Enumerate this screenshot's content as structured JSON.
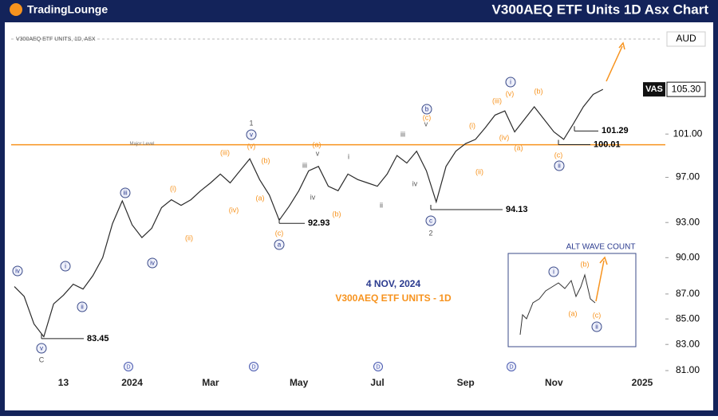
{
  "header": {
    "logo": "TradingLounge",
    "title": "V300AEQ ETF Units 1D Asx Chart"
  },
  "chart_data": {
    "type": "line",
    "instrument": "V300AEQ ETF UNITS, 1D, ASX",
    "currency": "AUD",
    "color": "#2b2b2b",
    "log": true,
    "grid": false,
    "categories": [
      null,
      null,
      null,
      null,
      null,
      "13",
      null,
      null,
      null,
      null,
      null,
      null,
      "2024",
      null,
      null,
      null,
      null,
      null,
      null,
      null,
      "Mar",
      null,
      null,
      null,
      null,
      null,
      null,
      null,
      null,
      "May",
      null,
      null,
      null,
      null,
      null,
      null,
      null,
      "Jul",
      null,
      null,
      null,
      null,
      null,
      null,
      null,
      null,
      "Sep",
      null,
      null,
      null,
      null,
      null,
      null,
      null,
      null,
      "Nov",
      null,
      null,
      null,
      null,
      null,
      null,
      null,
      null,
      "2025"
    ],
    "values": [
      87.6,
      86.8,
      84.6,
      83.6,
      86.2,
      86.9,
      87.8,
      87.4,
      88.5,
      90.0,
      92.9,
      94.9,
      92.8,
      91.7,
      92.5,
      94.3,
      95.0,
      94.5,
      95.0,
      95.8,
      96.5,
      97.3,
      96.5,
      97.6,
      98.7,
      96.8,
      95.4,
      93.2,
      94.4,
      95.8,
      97.6,
      98.0,
      96.2,
      95.8,
      97.3,
      96.8,
      96.5,
      96.2,
      97.3,
      99.0,
      98.3,
      99.4,
      97.6,
      94.8,
      98.0,
      99.4,
      100.1,
      100.5,
      101.6,
      102.8,
      103.2,
      101.2,
      102.4,
      103.6,
      102.4,
      101.2,
      100.5,
      102.0,
      103.6,
      104.8,
      105.3,
      null,
      null,
      null,
      null
    ],
    "ylim": [
      80.7,
      111.1
    ],
    "yticks": [
      {
        "value": 101,
        "label": "101.00"
      },
      {
        "value": 97,
        "label": "97.00"
      },
      {
        "value": 93,
        "label": "93.00"
      },
      {
        "value": 90,
        "label": "90.00"
      },
      {
        "value": 87,
        "label": "87.00"
      },
      {
        "value": 85,
        "label": "85.00"
      },
      {
        "value": 83,
        "label": "83.00"
      },
      {
        "value": 81,
        "label": "81.00"
      }
    ],
    "last_price": {
      "symbol": "VAS",
      "value": 105.3,
      "label": "105.30"
    },
    "major_level": {
      "name": "Major Level",
      "value": 100,
      "color": "#f7931e"
    },
    "levels": [
      101.29,
      100.01,
      94.13,
      92.93,
      83.45
    ],
    "annotations": [
      "4 NOV, 2024",
      "V300AEQ ETF UNITS - 1D"
    ],
    "dividend_markers": [
      "D",
      "D",
      "D",
      "D"
    ],
    "wave_labels": [
      {
        "text": "iv",
        "kind": "circled"
      },
      {
        "text": "v",
        "kind": "circled"
      },
      {
        "text": "C",
        "kind": "plain"
      },
      {
        "text": "i",
        "kind": "circled"
      },
      {
        "text": "ii",
        "kind": "circled"
      },
      {
        "text": "iii",
        "kind": "circled"
      },
      {
        "text": "iv",
        "kind": "circled"
      },
      {
        "text": "(i)",
        "kind": "orange"
      },
      {
        "text": "(ii)",
        "kind": "orange"
      },
      {
        "text": "(iii)",
        "kind": "orange"
      },
      {
        "text": "(iv)",
        "kind": "orange"
      },
      {
        "text": "1",
        "kind": "plain"
      },
      {
        "text": "v",
        "kind": "circled"
      },
      {
        "text": "(v)",
        "kind": "orange"
      },
      {
        "text": "(b)",
        "kind": "orange"
      },
      {
        "text": "(a)",
        "kind": "orange"
      },
      {
        "text": "(c)",
        "kind": "orange"
      },
      {
        "text": "a",
        "kind": "circled"
      },
      {
        "text": "iii",
        "kind": "plain"
      },
      {
        "text": "iv",
        "kind": "plain"
      },
      {
        "text": "v",
        "kind": "plain"
      },
      {
        "text": "(a)",
        "kind": "orange"
      },
      {
        "text": "(b)",
        "kind": "orange"
      },
      {
        "text": "i",
        "kind": "plain"
      },
      {
        "text": "ii",
        "kind": "plain"
      },
      {
        "text": "iii",
        "kind": "plain"
      },
      {
        "text": "iv",
        "kind": "plain"
      },
      {
        "text": "v",
        "kind": "plain"
      },
      {
        "text": "b",
        "kind": "circled"
      },
      {
        "text": "(c)",
        "kind": "orange"
      },
      {
        "text": "c",
        "kind": "circled"
      },
      {
        "text": "2",
        "kind": "plain"
      },
      {
        "text": "(i)",
        "kind": "orange"
      },
      {
        "text": "(ii)",
        "kind": "orange"
      },
      {
        "text": "(iii)",
        "kind": "orange"
      },
      {
        "text": "(v)",
        "kind": "orange"
      },
      {
        "text": "i",
        "kind": "circled"
      },
      {
        "text": "(iv)",
        "kind": "orange"
      },
      {
        "text": "(a)",
        "kind": "orange"
      },
      {
        "text": "(b)",
        "kind": "orange"
      },
      {
        "text": "(c)",
        "kind": "orange"
      },
      {
        "text": "ii",
        "kind": "circled"
      }
    ],
    "alt_count": {
      "title": "ALT WAVE COUNT",
      "labels": [
        {
          "text": "i",
          "kind": "circled"
        },
        {
          "text": "(b)",
          "kind": "orange"
        },
        {
          "text": "(a)",
          "kind": "orange"
        },
        {
          "text": "(c)",
          "kind": "orange"
        },
        {
          "text": "ii",
          "kind": "circled"
        }
      ]
    }
  }
}
